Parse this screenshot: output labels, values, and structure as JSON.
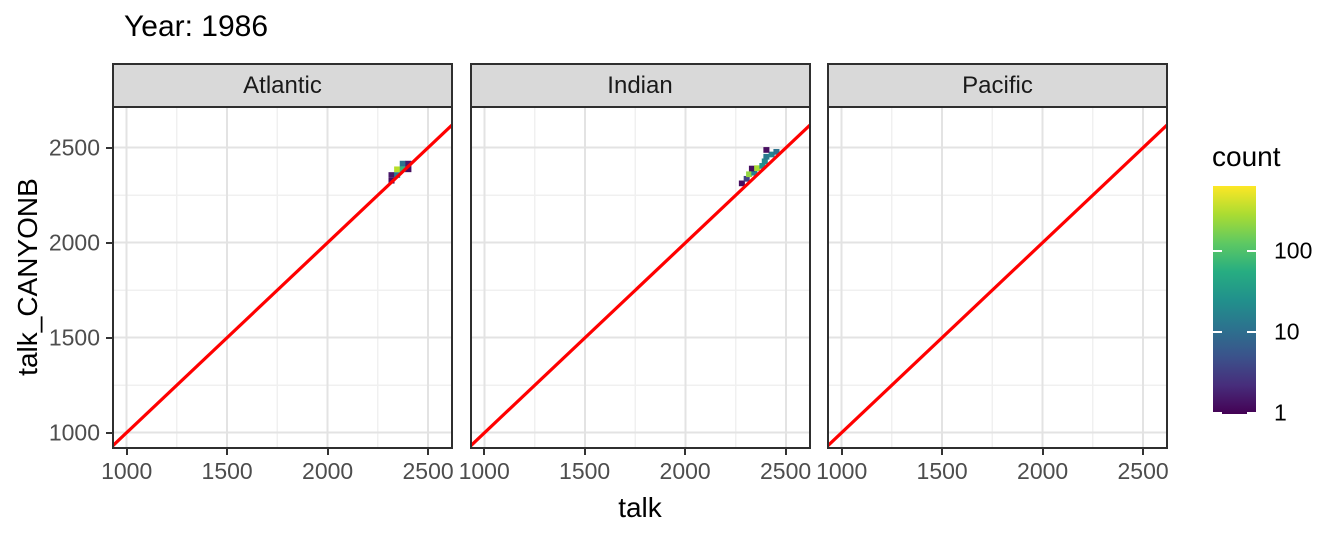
{
  "title": "Year: 1986",
  "axes": {
    "x_label": "talk",
    "y_label": "talk_CANYONB"
  },
  "chart_data": {
    "type": "heatmap",
    "subtype": "binned 2D density (geom_bin2d) comparison of measured vs predicted alkalinity, faceted by ocean",
    "title": "Year: 1986",
    "xlabel": "talk",
    "ylabel": "talk_CANYONB",
    "x_ticks": [
      1000,
      1500,
      2000,
      2500
    ],
    "y_ticks": [
      1000,
      1500,
      2000,
      2500
    ],
    "x_minor_ticks": [
      1250,
      1750,
      2250
    ],
    "y_minor_ticks": [
      1250,
      1750,
      2250
    ],
    "x_range": [
      932,
      2619
    ],
    "y_range": [
      919,
      2714
    ],
    "grid": true,
    "bin_size": 30,
    "reference_line": {
      "type": "identity y=x",
      "color": "#FF0000"
    },
    "facets": [
      {
        "label": "Atlantic",
        "tiles": [
          {
            "x": 2318,
            "y": 2326,
            "count": 2,
            "color": "#470D60"
          },
          {
            "x": 2318,
            "y": 2356,
            "count": 3,
            "color": "#48176A"
          },
          {
            "x": 2346,
            "y": 2356,
            "count": 30,
            "color": "#297A8E"
          },
          {
            "x": 2346,
            "y": 2386,
            "count": 350,
            "color": "#B8DE29"
          },
          {
            "x": 2374,
            "y": 2386,
            "count": 100,
            "color": "#35B779"
          },
          {
            "x": 2402,
            "y": 2386,
            "count": 2,
            "color": "#470D60"
          },
          {
            "x": 2374,
            "y": 2416,
            "count": 25,
            "color": "#2C728E"
          },
          {
            "x": 2402,
            "y": 2416,
            "count": 3,
            "color": "#48176A"
          }
        ]
      },
      {
        "label": "Indian",
        "tiles": [
          {
            "x": 2280,
            "y": 2312,
            "count": 2,
            "color": "#470D60"
          },
          {
            "x": 2304,
            "y": 2336,
            "count": 8,
            "color": "#414287"
          },
          {
            "x": 2316,
            "y": 2360,
            "count": 250,
            "color": "#93D741"
          },
          {
            "x": 2342,
            "y": 2368,
            "count": 35,
            "color": "#26838E"
          },
          {
            "x": 2330,
            "y": 2390,
            "count": 2,
            "color": "#470D60"
          },
          {
            "x": 2356,
            "y": 2392,
            "count": 300,
            "color": "#A8DB34"
          },
          {
            "x": 2382,
            "y": 2404,
            "count": 45,
            "color": "#21918C"
          },
          {
            "x": 2394,
            "y": 2428,
            "count": 40,
            "color": "#238A8D"
          },
          {
            "x": 2402,
            "y": 2452,
            "count": 30,
            "color": "#297A8E"
          },
          {
            "x": 2428,
            "y": 2464,
            "count": 35,
            "color": "#26838E"
          },
          {
            "x": 2402,
            "y": 2488,
            "count": 2,
            "color": "#470D60"
          },
          {
            "x": 2452,
            "y": 2478,
            "count": 25,
            "color": "#2C728E"
          }
        ]
      },
      {
        "label": "Pacific",
        "tiles": []
      }
    ],
    "legend": {
      "title": "count",
      "scale": "log10",
      "max_count": 620,
      "ticks": [
        100,
        10,
        1
      ],
      "tick_labels": [
        "100",
        "10",
        "1"
      ],
      "gradient_top_to_bottom": [
        "#FDE725",
        "#AADC32",
        "#5EC962",
        "#27AD81",
        "#21918C",
        "#2C728E",
        "#3B528B",
        "#472D7B",
        "#440154"
      ]
    }
  },
  "colors": {
    "background": "#FFFFFF",
    "panel_background": "#FFFFFF",
    "grid_major": "#E3E3E3",
    "grid_minor": "#F0F0F0",
    "panel_border": "#2F2F2F",
    "strip_fill": "#D9D9D9",
    "strip_text": "#1A1A1A",
    "tick_text": "#4D4D4D",
    "axis_text": "#000000",
    "reference_line": "#FF0000"
  }
}
